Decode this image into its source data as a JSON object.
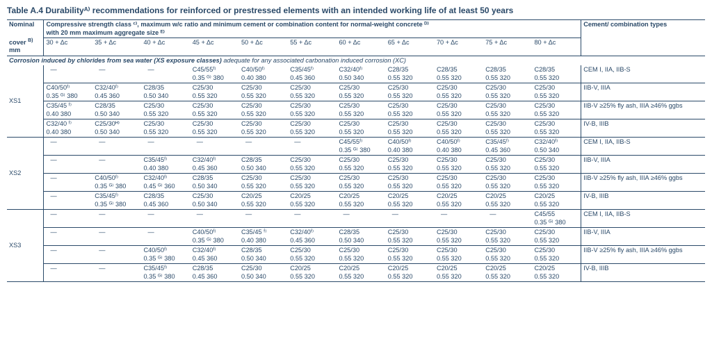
{
  "title": "Table A.4   Durabilityᴬ⁾ recommendations for reinforced or prestressed elements with an intended working life of at least 50 years",
  "header": {
    "nominal": "Nominal cover ᴮ⁾",
    "nominal_unit": "mm",
    "main_heading_l1": "Compressive strength class ᶜ⁾, maximum w/c ratio and minimum cement or combination content for normal-weight concrete ᴰ⁾",
    "main_heading_l2": "with 20 mm maximum aggregate size ᴱ⁾",
    "cement_heading": "Cement/ combination types",
    "columns": [
      "30 + Δc",
      "35 + Δc",
      "40 + Δc",
      "45 + Δc",
      "50 + Δc",
      "55 + Δc",
      "60 + Δc",
      "65 + Δc",
      "70 + Δc",
      "75 + Δc",
      "80 + Δc"
    ]
  },
  "subheading": {
    "bold": "Corrosion induced by chlorides from sea water (XS exposure classes)",
    "ital": "adequate for any associated carbonation induced corrosion (XC)"
  },
  "dash": "—",
  "groups": [
    {
      "code": "XS1",
      "rows": [
        {
          "cells": [
            {
              "d": true
            },
            {
              "d": true
            },
            {
              "d": true
            },
            {
              "l1": "C45/55ᶠ⁾",
              "l2": "0.35 ᴳ⁾ 380"
            },
            {
              "l1": "C40/50ᶠ⁾",
              "l2": "0.40 380"
            },
            {
              "l1": "C35/45ᶠ⁾",
              "l2": "0.45 360"
            },
            {
              "l1": "C32/40ᶠ⁾",
              "l2": "0.50 340"
            },
            {
              "l1": "C28/35",
              "l2": "0.55 320"
            },
            {
              "l1": "C28/35",
              "l2": "0.55 320"
            },
            {
              "l1": "C28/35",
              "l2": "0.55 320"
            },
            {
              "l1": "C28/35",
              "l2": "0.55 320"
            }
          ],
          "cement": "CEM I, IIA, IIB-S"
        },
        {
          "cells": [
            {
              "l1": "C40/50ᶠ⁾",
              "l2": "0.35 ᴳ⁾ 380"
            },
            {
              "l1": "C32/40ᶠ⁾",
              "l2": "0.45 360"
            },
            {
              "l1": "C28/35",
              "l2": "0.50 340"
            },
            {
              "l1": "C25/30",
              "l2": "0.55 320"
            },
            {
              "l1": "C25/30",
              "l2": "0.55 320"
            },
            {
              "l1": "C25/30",
              "l2": "0.55 320"
            },
            {
              "l1": "C25/30",
              "l2": "0.55 320"
            },
            {
              "l1": "C25/30",
              "l2": "0.55 320"
            },
            {
              "l1": "C25/30",
              "l2": "0.55 320"
            },
            {
              "l1": "C25/30",
              "l2": "0.55 320"
            },
            {
              "l1": "C25/30",
              "l2": "0.55 320"
            }
          ],
          "cement": "IIB-V, IIIA"
        },
        {
          "cells": [
            {
              "l1": "C35/45 ᶠ⁾",
              "l2": "0.40 380"
            },
            {
              "l1": "C28/35",
              "l2": "0.50 340"
            },
            {
              "l1": "C25/30",
              "l2": "0.55 320"
            },
            {
              "l1": "C25/30",
              "l2": "0.55 320"
            },
            {
              "l1": "C25/30",
              "l2": "0.55 320"
            },
            {
              "l1": "C25/30",
              "l2": "0.55 320"
            },
            {
              "l1": "C25/30",
              "l2": "0.55 320"
            },
            {
              "l1": "C25/30",
              "l2": "0.55 320"
            },
            {
              "l1": "C25/30",
              "l2": "0.55 320"
            },
            {
              "l1": "C25/30",
              "l2": "0.55 320"
            },
            {
              "l1": "C25/30",
              "l2": "0.55 320"
            }
          ],
          "cement": "IIB-V ≥25% fly ash, IIIA ≥46% ggbs"
        },
        {
          "cells": [
            {
              "l1": "C32/40 ᶠ⁾",
              "l2": "0.40 380"
            },
            {
              "l1": "C25/30ᴴ⁾",
              "l2": "0.50 340"
            },
            {
              "l1": "C25/30",
              "l2": "0.55 320"
            },
            {
              "l1": "C25/30",
              "l2": "0.55 320"
            },
            {
              "l1": "C25/30",
              "l2": "0.55 320"
            },
            {
              "l1": "C25/30",
              "l2": "0.55 320"
            },
            {
              "l1": "C25/30",
              "l2": "0.55 320"
            },
            {
              "l1": "C25/30",
              "l2": "0.55 320"
            },
            {
              "l1": "C25/30",
              "l2": "0.55 320"
            },
            {
              "l1": "C25/30",
              "l2": "0.55 320"
            },
            {
              "l1": "C25/30",
              "l2": "0.55 320"
            }
          ],
          "cement": "IV-B, IIIB"
        }
      ]
    },
    {
      "code": "XS2",
      "rows": [
        {
          "cells": [
            {
              "d": true
            },
            {
              "d": true
            },
            {
              "d": true
            },
            {
              "d": true
            },
            {
              "d": true
            },
            {
              "d": true
            },
            {
              "l1": "C45/55ᶠ⁾",
              "l2": "0.35 ᴳ⁾ 380"
            },
            {
              "l1": "C40/50ᶠ⁾",
              "l2": "0.40 380"
            },
            {
              "l1": "C40/50ᶠ⁾",
              "l2": "0.40 380"
            },
            {
              "l1": "C35/45ᶠ⁾",
              "l2": "0.45 360"
            },
            {
              "l1": "C32/40ᶠ⁾",
              "l2": "0.50 340"
            }
          ],
          "cement": "CEM I, IIA, IIB-S"
        },
        {
          "cells": [
            {
              "d": true
            },
            {
              "d": true
            },
            {
              "l1": "C35/45ᶠ⁾",
              "l2": "0.40 380"
            },
            {
              "l1": "C32/40ᶠ⁾",
              "l2": "0.45 360"
            },
            {
              "l1": "C28/35",
              "l2": "0.50 340"
            },
            {
              "l1": "C25/30",
              "l2": "0.55 320"
            },
            {
              "l1": "C25/30",
              "l2": "0.55 320"
            },
            {
              "l1": "C25/30",
              "l2": "0.55 320"
            },
            {
              "l1": "C25/30",
              "l2": "0.55 320"
            },
            {
              "l1": "C25/30",
              "l2": "0.55 320"
            },
            {
              "l1": "C25/30",
              "l2": "0.55 320"
            }
          ],
          "cement": "IIB-V, IIIA"
        },
        {
          "cells": [
            {
              "d": true
            },
            {
              "l1": "C40/50ᶠ⁾",
              "l2": "0.35 ᴳ⁾ 380"
            },
            {
              "l1": "C32/40ᶠ⁾",
              "l2": "0.45 ᴳ⁾ 360"
            },
            {
              "l1": "C28/35",
              "l2": "0.50 340"
            },
            {
              "l1": "C25/30",
              "l2": "0.55 320"
            },
            {
              "l1": "C25/30",
              "l2": "0.55 320"
            },
            {
              "l1": "C25/30",
              "l2": "0.55 320"
            },
            {
              "l1": "C25/30",
              "l2": "0.55 320"
            },
            {
              "l1": "C25/30",
              "l2": "0.55 320"
            },
            {
              "l1": "C25/30",
              "l2": "0.55 320"
            },
            {
              "l1": "C25/30",
              "l2": "0.55 320"
            }
          ],
          "cement": "IIB-V ≥25% fly ash, IIIA ≥46% ggbs"
        },
        {
          "cells": [
            {
              "d": true
            },
            {
              "l1": "C35/45ᶠ⁾",
              "l2": "0.35 ᴳ⁾ 380"
            },
            {
              "l1": "C28/35",
              "l2": "0.45 360"
            },
            {
              "l1": "C25/30",
              "l2": "0.50 340"
            },
            {
              "l1": "C20/25",
              "l2": "0.55 320"
            },
            {
              "l1": "C20/25",
              "l2": "0.55 320"
            },
            {
              "l1": "C20/25",
              "l2": "0.55 320"
            },
            {
              "l1": "C20/25",
              "l2": "0.55 320"
            },
            {
              "l1": "C20/25",
              "l2": "0.55 320"
            },
            {
              "l1": "C20/25",
              "l2": "0.55 320"
            },
            {
              "l1": "C20/25",
              "l2": "0.55 320"
            }
          ],
          "cement": "IV-B, IIIB"
        }
      ]
    },
    {
      "code": "XS3",
      "rows": [
        {
          "cells": [
            {
              "d": true
            },
            {
              "d": true
            },
            {
              "d": true
            },
            {
              "d": true
            },
            {
              "d": true
            },
            {
              "d": true
            },
            {
              "d": true
            },
            {
              "d": true
            },
            {
              "d": true
            },
            {
              "d": true
            },
            {
              "l1": "C45/55",
              "l2": "0.35 ᴳ⁾ 380"
            }
          ],
          "cement": "CEM I, IIA, IIB-S"
        },
        {
          "cells": [
            {
              "d": true
            },
            {
              "d": true
            },
            {
              "d": true
            },
            {
              "l1": "C40/50ᶠ⁾",
              "l2": "0.35 ᴳ⁾ 380"
            },
            {
              "l1": "C35/45 ᶠ⁾",
              "l2": "0.40 380"
            },
            {
              "l1": "C32/40ᶠ⁾",
              "l2": "0.45 360"
            },
            {
              "l1": "C28/35",
              "l2": "0.50 340"
            },
            {
              "l1": "C25/30",
              "l2": "0.55 320"
            },
            {
              "l1": "C25/30",
              "l2": "0.55 320"
            },
            {
              "l1": "C25/30",
              "l2": "0.55 320"
            },
            {
              "l1": "C25/30",
              "l2": "0.55 320"
            }
          ],
          "cement": "IIB-V, IIIA"
        },
        {
          "cells": [
            {
              "d": true
            },
            {
              "d": true
            },
            {
              "l1": "C40/50ᶠ⁾",
              "l2": "0.35 ᴳ⁾ 380"
            },
            {
              "l1": "C32/40ᶠ⁾",
              "l2": "0.45 360"
            },
            {
              "l1": "C28/35",
              "l2": "0.50 340"
            },
            {
              "l1": "C25/30",
              "l2": "0.55 320"
            },
            {
              "l1": "C25/30",
              "l2": "0.55 320"
            },
            {
              "l1": "C25/30",
              "l2": "0.55 320"
            },
            {
              "l1": "C25/30",
              "l2": "0.55 320"
            },
            {
              "l1": "C25/30",
              "l2": "0.55 320"
            },
            {
              "l1": "C25/30",
              "l2": "0.55 320"
            }
          ],
          "cement": "IIB-V ≥25% fly ash, IIIA ≥46% ggbs"
        },
        {
          "cells": [
            {
              "d": true
            },
            {
              "d": true
            },
            {
              "l1": "C35/45ᶠ⁾",
              "l2": "0.35 ᴳ⁾ 380"
            },
            {
              "l1": "C28/35",
              "l2": "0.45 360"
            },
            {
              "l1": "C25/30",
              "l2": "0.50 340"
            },
            {
              "l1": "C20/25",
              "l2": "0.55 320"
            },
            {
              "l1": "C20/25",
              "l2": "0.55 320"
            },
            {
              "l1": "C20/25",
              "l2": "0.55 320"
            },
            {
              "l1": "C20/25",
              "l2": "0.55 320"
            },
            {
              "l1": "C20/25",
              "l2": "0.55 320"
            },
            {
              "l1": "C20/25",
              "l2": "0.55 320"
            }
          ],
          "cement": "IV-B, IIIB"
        }
      ]
    }
  ]
}
